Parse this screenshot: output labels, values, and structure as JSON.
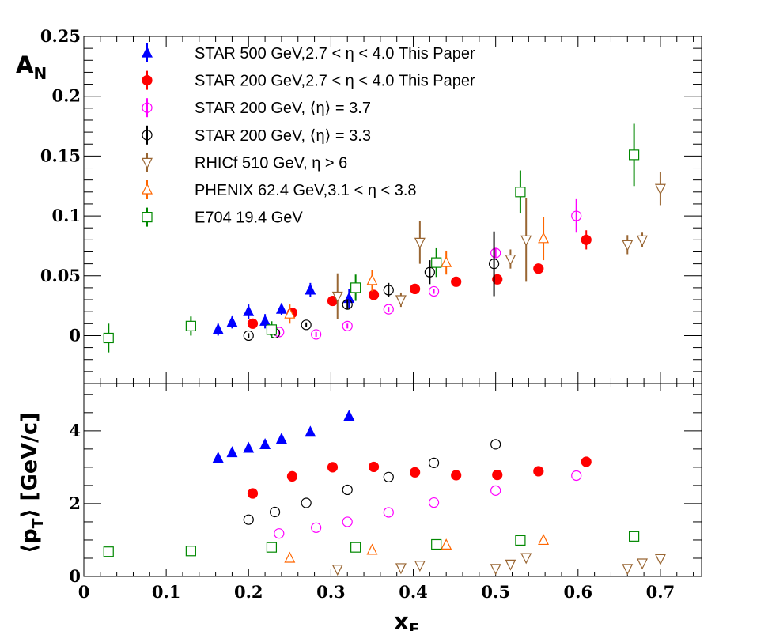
{
  "chart_data": [
    {
      "type": "scatter",
      "panel": "top",
      "ylabel_main": "A",
      "ylabel_sub": "N",
      "xlim": [
        0,
        0.75
      ],
      "ylim": [
        -0.04,
        0.25
      ],
      "y_ticks": [
        0,
        0.05,
        0.1,
        0.15,
        0.2,
        0.25
      ],
      "y_tick_labels": [
        "0",
        "0.05",
        "0.1",
        "0.15",
        "0.2",
        "0.25"
      ],
      "legend_placement": "top-left",
      "series": [
        {
          "name": "STAR 500 GeV,2.7 < η < 4.0 This Paper",
          "marker": "triangle-up-filled",
          "color": "#0000ff",
          "points": [
            [
              0.163,
              0.005,
              0.005
            ],
            [
              0.18,
              0.011,
              0.005
            ],
            [
              0.2,
              0.02,
              0.006
            ],
            [
              0.22,
              0.012,
              0.006
            ],
            [
              0.24,
              0.022,
              0.005
            ],
            [
              0.275,
              0.038,
              0.006
            ],
            [
              0.322,
              0.031,
              0.008
            ]
          ]
        },
        {
          "name": "STAR 200 GeV,2.7 < η < 4.0 This Paper",
          "marker": "circle-filled",
          "color": "#ff0000",
          "points": [
            [
              0.205,
              0.01,
              0.003
            ],
            [
              0.253,
              0.019,
              0.003
            ],
            [
              0.302,
              0.029,
              0.003
            ],
            [
              0.352,
              0.034,
              0.003
            ],
            [
              0.402,
              0.039,
              0.003
            ],
            [
              0.452,
              0.045,
              0.003
            ],
            [
              0.502,
              0.047,
              0.003
            ],
            [
              0.552,
              0.056,
              0.004
            ],
            [
              0.61,
              0.08,
              0.008
            ]
          ]
        },
        {
          "name": "STAR 200 GeV, ⟨η⟩ = 3.7",
          "marker": "circle-open",
          "color": "#ff00ff",
          "points": [
            [
              0.237,
              0.003,
              0.002
            ],
            [
              0.282,
              0.001,
              0.002
            ],
            [
              0.32,
              0.008,
              0.002
            ],
            [
              0.37,
              0.022,
              0.002
            ],
            [
              0.425,
              0.037,
              0.002
            ],
            [
              0.5,
              0.069,
              0.004
            ],
            [
              0.598,
              0.1,
              0.014
            ]
          ]
        },
        {
          "name": "STAR 200 GeV, ⟨η⟩ = 3.3",
          "marker": "circle-open",
          "color": "#000000",
          "points": [
            [
              0.2,
              0.0,
              0.002
            ],
            [
              0.232,
              0.002,
              0.002
            ],
            [
              0.27,
              0.009,
              0.002
            ],
            [
              0.32,
              0.026,
              0.004
            ],
            [
              0.37,
              0.038,
              0.006
            ],
            [
              0.42,
              0.053,
              0.01
            ],
            [
              0.498,
              0.06,
              0.027
            ]
          ]
        },
        {
          "name": "RHICf 510 GeV, η > 6",
          "marker": "triangle-down-open",
          "color": "#996633",
          "points": [
            [
              0.308,
              0.033,
              0.019
            ],
            [
              0.385,
              0.03,
              0.006
            ],
            [
              0.408,
              0.078,
              0.018
            ],
            [
              0.518,
              0.064,
              0.008
            ],
            [
              0.537,
              0.08,
              0.035
            ],
            [
              0.66,
              0.076,
              0.008
            ],
            [
              0.678,
              0.08,
              0.006
            ],
            [
              0.7,
              0.123,
              0.014
            ]
          ]
        },
        {
          "name": "PHENIX 62.4 GeV,3.1 < η < 3.8",
          "marker": "triangle-up-open",
          "color": "#ff6600",
          "points": [
            [
              0.25,
              0.018,
              0.008
            ],
            [
              0.35,
              0.046,
              0.009
            ],
            [
              0.44,
              0.061,
              0.01
            ],
            [
              0.558,
              0.081,
              0.018
            ]
          ]
        },
        {
          "name": "E704 19.4 GeV",
          "marker": "square-open",
          "color": "#008800",
          "points": [
            [
              0.03,
              -0.002,
              0.012
            ],
            [
              0.13,
              0.008,
              0.008
            ],
            [
              0.228,
              0.005,
              0.007
            ],
            [
              0.33,
              0.04,
              0.011
            ],
            [
              0.428,
              0.061,
              0.012
            ],
            [
              0.53,
              0.12,
              0.018
            ],
            [
              0.668,
              0.151,
              0.026
            ]
          ]
        }
      ]
    },
    {
      "type": "scatter",
      "panel": "bottom",
      "ylabel": "⟨pT⟩ [GeV/c]",
      "ylabel_open": "⟨p",
      "ylabel_sub": "T",
      "ylabel_close": "⟩ [GeV/c]",
      "xlabel_main": "x",
      "xlabel_sub": "F",
      "xlim": [
        0,
        0.75
      ],
      "ylim": [
        0,
        5.3
      ],
      "x_ticks": [
        0,
        0.1,
        0.2,
        0.3,
        0.4,
        0.5,
        0.6,
        0.7
      ],
      "x_tick_labels": [
        "0",
        "0.1",
        "0.2",
        "0.3",
        "0.4",
        "0.5",
        "0.6",
        "0.7"
      ],
      "y_ticks": [
        0,
        2,
        4
      ],
      "y_tick_labels": [
        "0",
        "2",
        "4"
      ],
      "series": [
        {
          "ref": 0,
          "points": [
            [
              0.163,
              3.25
            ],
            [
              0.18,
              3.4
            ],
            [
              0.2,
              3.52
            ],
            [
              0.22,
              3.62
            ],
            [
              0.24,
              3.77
            ],
            [
              0.275,
              3.96
            ],
            [
              0.322,
              4.4
            ]
          ]
        },
        {
          "ref": 1,
          "points": [
            [
              0.205,
              2.28
            ],
            [
              0.253,
              2.75
            ],
            [
              0.302,
              3.0
            ],
            [
              0.352,
              3.01
            ],
            [
              0.402,
              2.86
            ],
            [
              0.452,
              2.78
            ],
            [
              0.502,
              2.79
            ],
            [
              0.552,
              2.89
            ],
            [
              0.61,
              3.15
            ]
          ]
        },
        {
          "ref": 2,
          "points": [
            [
              0.237,
              1.18
            ],
            [
              0.282,
              1.34
            ],
            [
              0.32,
              1.5
            ],
            [
              0.37,
              1.76
            ],
            [
              0.425,
              2.03
            ],
            [
              0.5,
              2.36
            ],
            [
              0.598,
              2.77
            ]
          ]
        },
        {
          "ref": 3,
          "points": [
            [
              0.2,
              1.56
            ],
            [
              0.232,
              1.77
            ],
            [
              0.27,
              2.02
            ],
            [
              0.32,
              2.38
            ],
            [
              0.37,
              2.73
            ],
            [
              0.425,
              3.12
            ],
            [
              0.5,
              3.63
            ]
          ]
        },
        {
          "ref": 4,
          "points": [
            [
              0.308,
              0.2
            ],
            [
              0.385,
              0.24
            ],
            [
              0.408,
              0.31
            ],
            [
              0.5,
              0.22
            ],
            [
              0.518,
              0.34
            ],
            [
              0.537,
              0.52
            ],
            [
              0.66,
              0.22
            ],
            [
              0.678,
              0.37
            ],
            [
              0.7,
              0.49
            ]
          ]
        },
        {
          "ref": 5,
          "points": [
            [
              0.25,
              0.5
            ],
            [
              0.35,
              0.72
            ],
            [
              0.44,
              0.86
            ],
            [
              0.558,
              0.99
            ]
          ]
        },
        {
          "ref": 6,
          "points": [
            [
              0.03,
              0.68
            ],
            [
              0.13,
              0.7
            ],
            [
              0.228,
              0.8
            ],
            [
              0.33,
              0.8
            ],
            [
              0.428,
              0.88
            ],
            [
              0.53,
              0.99
            ],
            [
              0.668,
              1.1
            ]
          ]
        }
      ]
    }
  ]
}
